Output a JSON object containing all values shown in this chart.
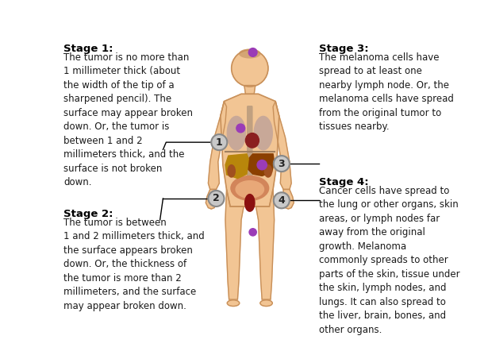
{
  "stage1_title": "Stage 1:",
  "stage1_text": "The tumor is no more than\n1 millimeter thick (about\nthe width of the tip of a\nsharpened pencil). The\nsurface may appear broken\ndown. Or, the tumor is\nbetween 1 and 2\nmillimeters thick, and the\nsurface is not broken\ndown.",
  "stage2_title": "Stage 2:",
  "stage2_text": "The tumor is between\n1 and 2 millimeters thick, and\nthe surface appears broken\ndown. Or, the thickness of\nthe tumor is more than 2\nmillimeters, and the surface\nmay appear broken down.",
  "stage3_title": "Stage 3:",
  "stage3_text": "The melanoma cells have\nspread to at least one\nnearby lymph node. Or, the\nmelanoma cells have spread\nfrom the original tumor to\ntissues nearby.",
  "stage4_title": "Stage 4:",
  "stage4_text": "Cancer cells have spread to\nthe lung or other organs, skin\nareas, or lymph nodes far\naway from the original\ngrowth. Melanoma\ncommonly spreads to other\nparts of the skin, tissue under\nthe skin, lymph nodes, and\nlungs. It can also spread to\nthe liver, brain, bones, and\nother organs.",
  "bg_color": "#ffffff",
  "text_color": "#1a1a1a",
  "title_color": "#000000",
  "body_color": "#F2C594",
  "body_outline": "#C8905A",
  "organ_gray": "#888888",
  "tumor_color": "#9B3CB7",
  "circle_fill": "#C8C8C8",
  "circle_outline": "#888888",
  "label_fontsize": 8.5,
  "title_fontsize": 9.5
}
